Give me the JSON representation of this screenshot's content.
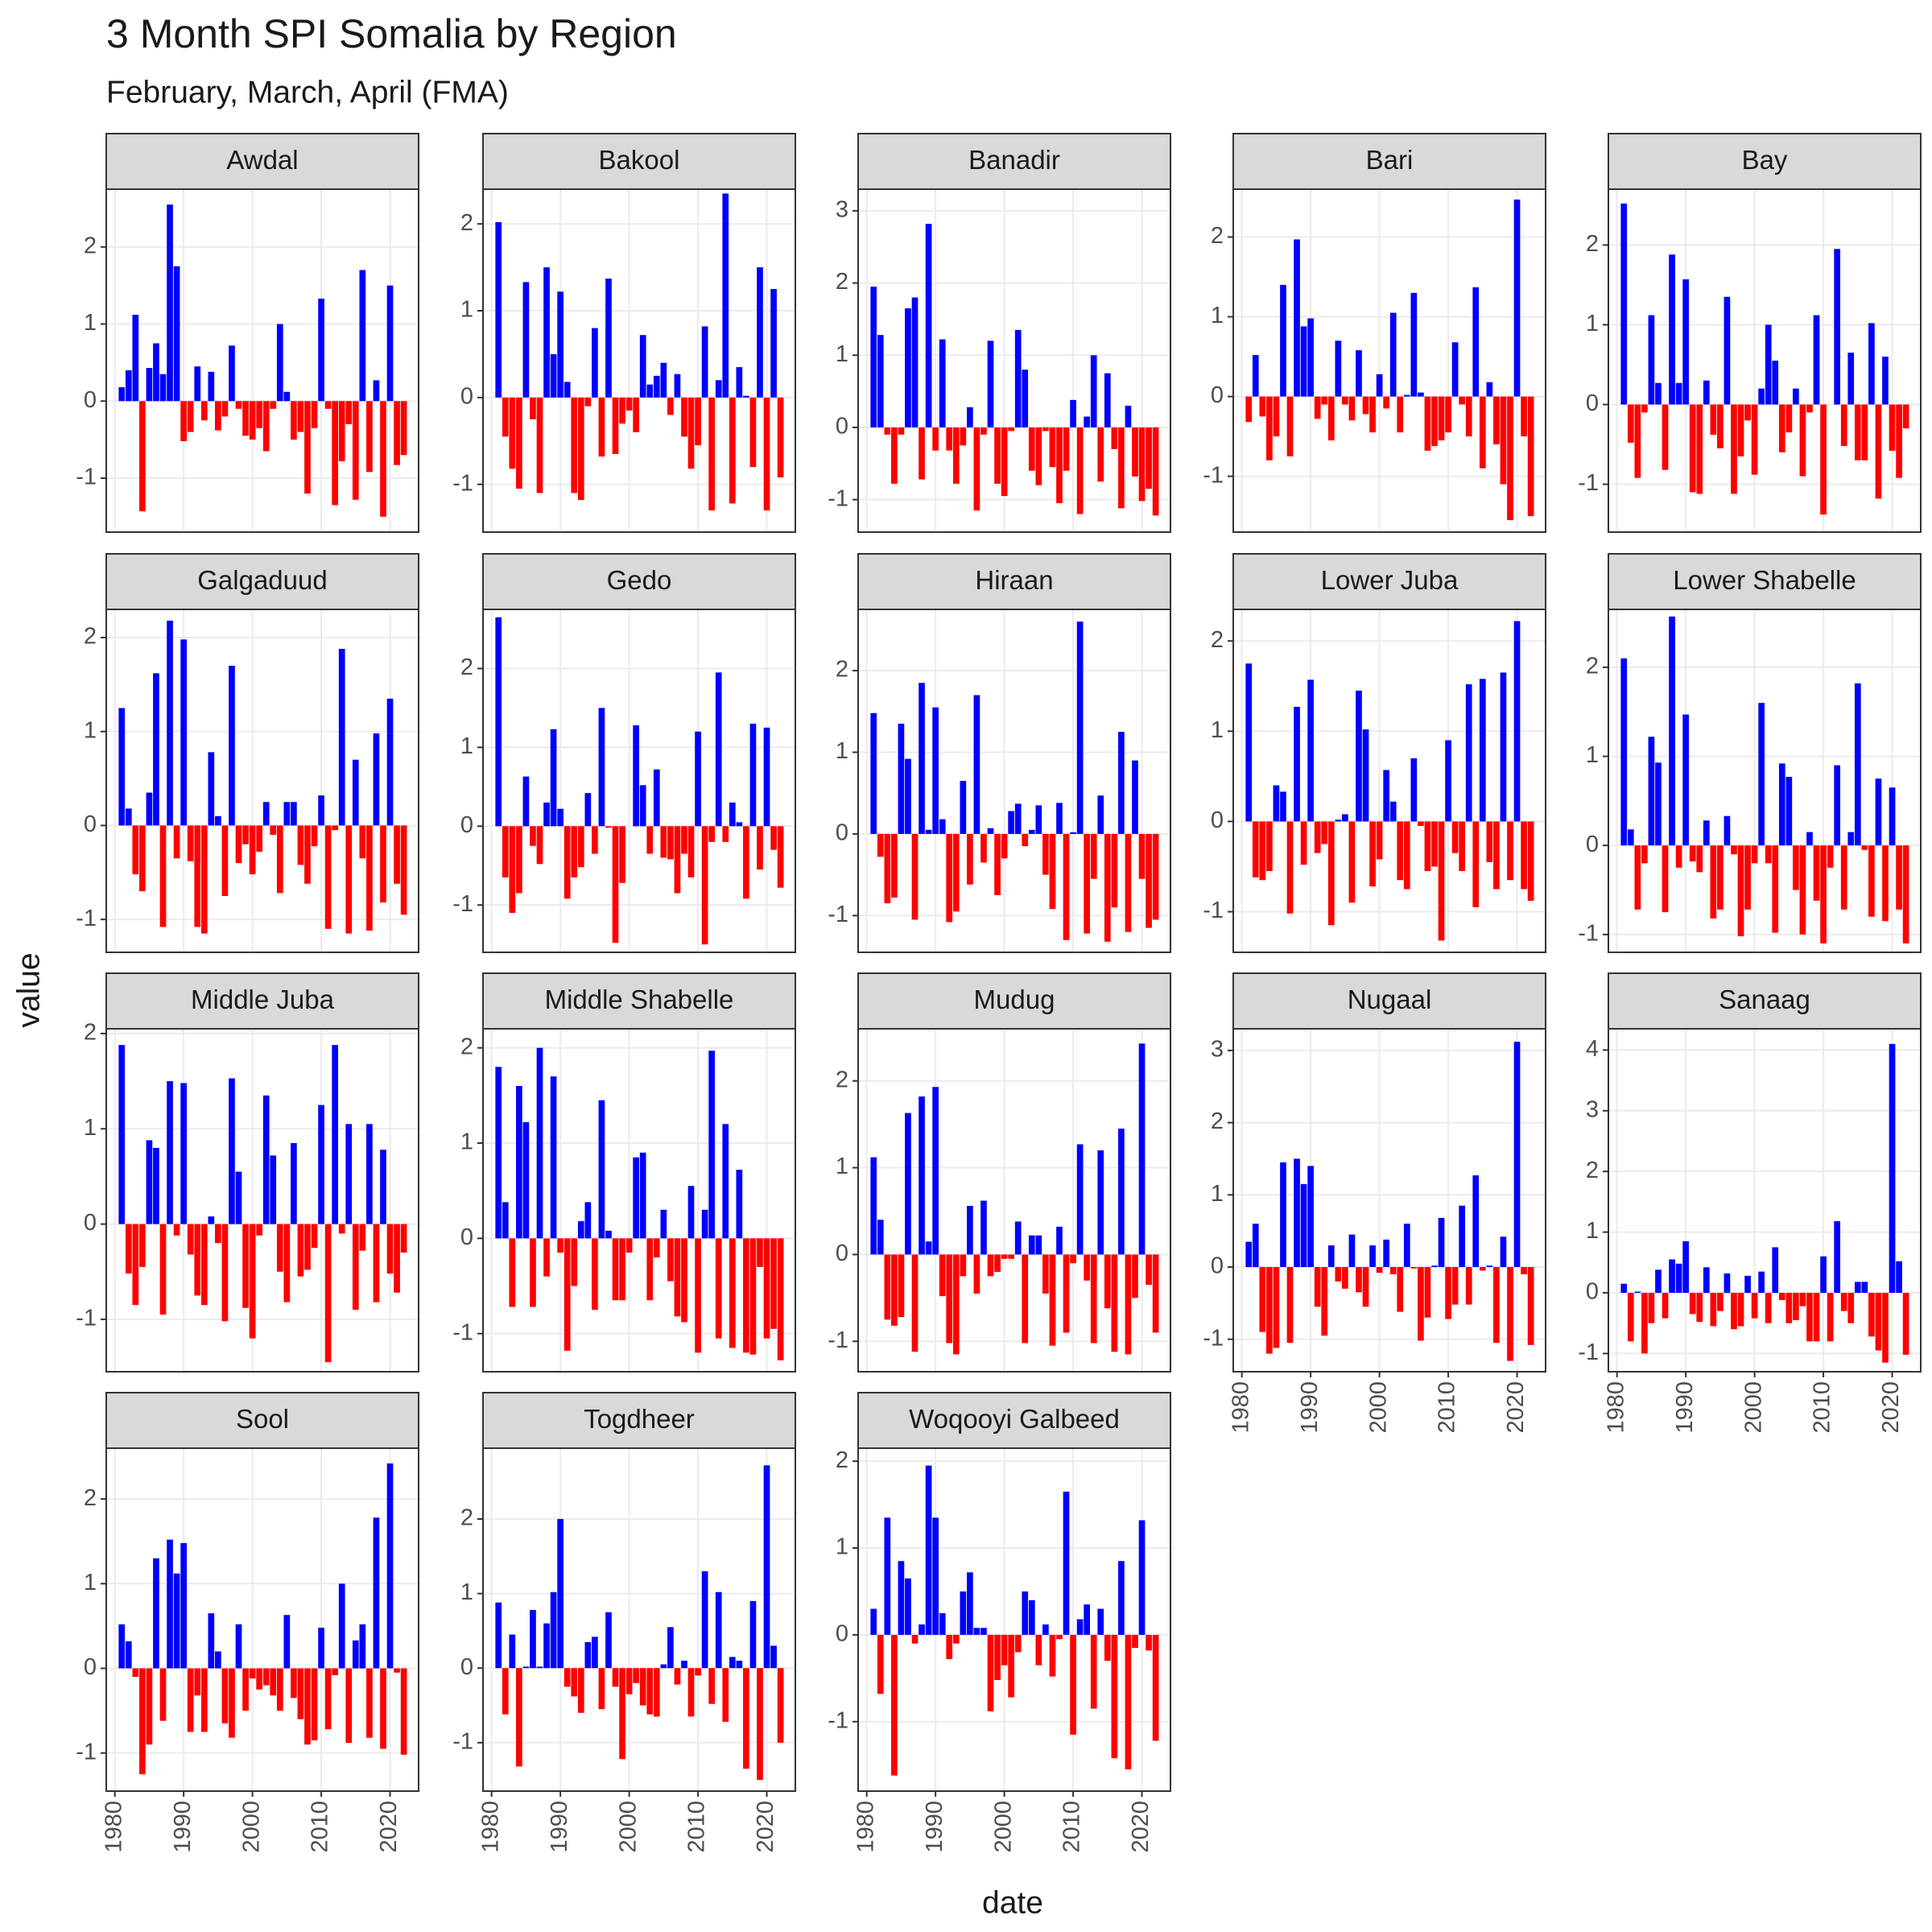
{
  "chart_data": {
    "type": "bar",
    "title": "3 Month SPI Somalia by Region",
    "subtitle": "February, March, April (FMA)",
    "x_label": "date",
    "y_label": "value",
    "x": [
      1981,
      1982,
      1983,
      1984,
      1985,
      1986,
      1987,
      1988,
      1989,
      1990,
      1991,
      1992,
      1993,
      1994,
      1995,
      1996,
      1997,
      1998,
      1999,
      2000,
      2001,
      2002,
      2003,
      2004,
      2005,
      2006,
      2007,
      2008,
      2009,
      2010,
      2011,
      2012,
      2013,
      2014,
      2015,
      2016,
      2017,
      2018,
      2019,
      2020,
      2021,
      2022
    ],
    "xlim": [
      1978.75,
      2024.15
    ],
    "xticks": [
      1980,
      1990,
      2000,
      2010,
      2020
    ],
    "colors": {
      "positive": "#0000ff",
      "negative": "#ff0000"
    },
    "grid": true,
    "panels": [
      {
        "name": "Awdal",
        "ylim": [
          -1.7,
          2.75
        ],
        "yticks": [
          -1,
          0,
          1,
          2
        ],
        "values": [
          0.18,
          0.4,
          1.12,
          -1.43,
          0.43,
          0.75,
          0.35,
          2.55,
          1.75,
          -0.52,
          -0.4,
          0.45,
          -0.25,
          0.38,
          -0.38,
          -0.2,
          0.72,
          -0.1,
          -0.45,
          -0.5,
          -0.35,
          -0.65,
          -0.1,
          1.0,
          0.12,
          -0.5,
          -0.4,
          -1.2,
          -0.35,
          1.33,
          -0.1,
          -1.35,
          -0.78,
          -0.3,
          -1.28,
          1.7,
          -0.92,
          0.27,
          -1.5,
          1.5,
          -0.83,
          -0.7
        ]
      },
      {
        "name": "Bakool",
        "ylim": [
          -1.55,
          2.4
        ],
        "yticks": [
          -1,
          0,
          1,
          2
        ],
        "values": [
          2.02,
          -0.45,
          -0.82,
          -1.05,
          1.33,
          -0.25,
          -1.1,
          1.5,
          0.5,
          1.22,
          0.18,
          -1.1,
          -1.18,
          -0.1,
          0.8,
          -0.68,
          1.37,
          -0.65,
          -0.3,
          -0.15,
          -0.4,
          0.72,
          0.15,
          0.25,
          0.4,
          -0.2,
          0.27,
          -0.45,
          -0.82,
          -0.55,
          0.82,
          -1.3,
          0.2,
          2.35,
          -1.22,
          0.35,
          0.02,
          -0.8,
          1.5,
          -1.3,
          1.25,
          -0.92
        ]
      },
      {
        "name": "Banadir",
        "ylim": [
          -1.45,
          3.3
        ],
        "yticks": [
          -1,
          0,
          1,
          2,
          3
        ],
        "values": [
          1.95,
          1.28,
          -0.1,
          -0.78,
          -0.1,
          1.65,
          1.8,
          -0.72,
          2.82,
          -0.32,
          1.22,
          -0.32,
          -0.78,
          -0.25,
          0.28,
          -1.15,
          -0.1,
          1.2,
          -0.78,
          -0.95,
          -0.05,
          1.35,
          0.8,
          -0.6,
          -0.8,
          -0.05,
          -0.55,
          -1.05,
          -0.6,
          0.38,
          -1.2,
          0.15,
          1.0,
          -0.75,
          0.75,
          -0.3,
          -1.12,
          0.3,
          -0.68,
          -1.02,
          -0.85,
          -1.22
        ]
      },
      {
        "name": "Bari",
        "ylim": [
          -1.7,
          2.6
        ],
        "yticks": [
          -1,
          0,
          1,
          2
        ],
        "values": [
          -0.32,
          0.52,
          -0.25,
          -0.8,
          -0.5,
          1.4,
          -0.75,
          1.97,
          0.88,
          0.98,
          -0.28,
          -0.1,
          -0.55,
          0.7,
          -0.1,
          -0.3,
          0.58,
          -0.22,
          -0.45,
          0.28,
          -0.15,
          1.05,
          -0.45,
          0.02,
          1.3,
          0.05,
          -0.68,
          -0.62,
          -0.55,
          -0.45,
          0.68,
          -0.1,
          -0.5,
          1.37,
          -0.9,
          0.18,
          -0.6,
          -1.1,
          -1.55,
          2.47,
          -0.5,
          -1.5
        ]
      },
      {
        "name": "Bay",
        "ylim": [
          -1.6,
          2.7
        ],
        "yticks": [
          -1,
          0,
          1,
          2
        ],
        "values": [
          2.52,
          -0.48,
          -0.92,
          -0.1,
          1.12,
          0.27,
          -0.82,
          1.88,
          0.27,
          1.57,
          -1.1,
          -1.12,
          0.3,
          -0.38,
          -0.55,
          1.35,
          -1.12,
          -0.65,
          -0.2,
          -0.88,
          0.2,
          1.0,
          0.55,
          -0.6,
          -0.35,
          0.2,
          -0.9,
          -0.1,
          1.12,
          -1.38,
          0.0,
          1.95,
          -0.52,
          0.65,
          -0.7,
          -0.7,
          1.02,
          -1.18,
          0.6,
          -0.58,
          -0.92,
          -0.3
        ]
      },
      {
        "name": "Galgaduud",
        "ylim": [
          -1.35,
          2.3
        ],
        "yticks": [
          -1,
          0,
          1,
          2
        ],
        "values": [
          1.25,
          0.18,
          -0.52,
          -0.7,
          0.35,
          1.62,
          -1.08,
          2.18,
          -0.35,
          1.98,
          -0.38,
          -1.08,
          -1.15,
          0.78,
          0.1,
          -0.75,
          1.7,
          -0.4,
          -0.2,
          -0.52,
          -0.28,
          0.25,
          -0.1,
          -0.72,
          0.25,
          0.25,
          -0.42,
          -0.62,
          -0.22,
          0.32,
          -1.1,
          -0.05,
          1.88,
          -1.15,
          0.7,
          -0.35,
          -1.12,
          0.98,
          -0.82,
          1.35,
          -0.62,
          -0.95
        ]
      },
      {
        "name": "Gedo",
        "ylim": [
          -1.6,
          2.75
        ],
        "yticks": [
          -1,
          0,
          1,
          2
        ],
        "values": [
          2.65,
          -0.65,
          -1.1,
          -0.85,
          0.63,
          -0.25,
          -0.48,
          0.3,
          1.23,
          0.22,
          -0.92,
          -0.65,
          -0.52,
          0.42,
          -0.35,
          1.5,
          -0.02,
          -1.48,
          -0.72,
          0.0,
          1.28,
          0.52,
          -0.35,
          0.72,
          -0.4,
          -0.42,
          -0.85,
          -0.35,
          -0.65,
          1.2,
          -1.5,
          -0.2,
          1.95,
          -0.2,
          0.3,
          0.05,
          -0.92,
          1.3,
          -0.55,
          1.25,
          -0.3,
          -0.78
        ]
      },
      {
        "name": "Hiraan",
        "ylim": [
          -1.45,
          2.75
        ],
        "yticks": [
          -1,
          0,
          1,
          2
        ],
        "values": [
          1.48,
          -0.28,
          -0.85,
          -0.78,
          1.35,
          0.92,
          -1.05,
          1.85,
          0.05,
          1.55,
          0.18,
          -1.08,
          -0.95,
          0.65,
          -0.62,
          1.7,
          -0.35,
          0.07,
          -0.75,
          -0.3,
          0.28,
          0.37,
          -0.15,
          0.05,
          0.35,
          -0.5,
          -0.92,
          0.38,
          -1.3,
          0.02,
          2.6,
          -1.22,
          -0.55,
          0.47,
          -1.32,
          -0.9,
          1.25,
          -1.2,
          0.9,
          -0.55,
          -1.15,
          -1.05
        ]
      },
      {
        "name": "Lower Juba",
        "ylim": [
          -1.45,
          2.35
        ],
        "yticks": [
          -1,
          0,
          1,
          2
        ],
        "values": [
          1.75,
          -0.62,
          -0.65,
          -0.55,
          0.4,
          0.33,
          -1.02,
          1.27,
          -0.48,
          1.57,
          -0.35,
          -0.25,
          -1.15,
          0.02,
          0.08,
          -0.9,
          1.45,
          1.02,
          -0.72,
          -0.42,
          0.57,
          0.22,
          -0.65,
          -0.75,
          0.7,
          -0.05,
          -0.55,
          -0.5,
          -1.32,
          0.9,
          -0.35,
          -0.55,
          1.52,
          -0.95,
          1.58,
          -0.45,
          -0.75,
          1.65,
          -0.65,
          2.22,
          -0.75,
          -0.88
        ]
      },
      {
        "name": "Lower Shabelle",
        "ylim": [
          -1.2,
          2.65
        ],
        "yticks": [
          -1,
          0,
          1,
          2
        ],
        "values": [
          2.1,
          0.18,
          -0.72,
          -0.2,
          1.22,
          0.93,
          -0.75,
          2.57,
          -0.25,
          1.47,
          -0.18,
          -0.3,
          0.28,
          -0.82,
          -0.72,
          0.33,
          -0.1,
          -1.02,
          -0.72,
          -0.2,
          1.6,
          -0.2,
          -0.98,
          0.92,
          0.77,
          -0.5,
          -1.0,
          0.15,
          -0.62,
          -1.1,
          -0.25,
          0.9,
          -0.72,
          0.15,
          1.82,
          -0.05,
          -0.8,
          0.75,
          -0.85,
          0.65,
          -0.72,
          -1.1
        ]
      },
      {
        "name": "Middle Juba",
        "ylim": [
          -1.55,
          2.05
        ],
        "yticks": [
          -1,
          0,
          1,
          2
        ],
        "values": [
          1.88,
          -0.52,
          -0.85,
          -0.45,
          0.88,
          0.8,
          -0.95,
          1.5,
          -0.12,
          1.48,
          -0.32,
          -0.75,
          -0.85,
          0.08,
          -0.2,
          -1.02,
          1.53,
          0.55,
          -0.88,
          -1.2,
          -0.12,
          1.35,
          0.72,
          -0.5,
          -0.82,
          0.85,
          -0.55,
          -0.48,
          -0.25,
          1.25,
          -1.45,
          1.88,
          -0.1,
          1.05,
          -0.9,
          -0.28,
          1.05,
          -0.82,
          0.78,
          -0.52,
          -0.72,
          -0.3
        ]
      },
      {
        "name": "Middle Shabelle",
        "ylim": [
          -1.4,
          2.2
        ],
        "yticks": [
          -1,
          0,
          1,
          2
        ],
        "values": [
          1.8,
          0.38,
          -0.72,
          1.6,
          1.22,
          -0.72,
          2.0,
          -0.4,
          1.7,
          -0.15,
          -1.18,
          -0.5,
          0.18,
          0.38,
          -0.75,
          1.45,
          0.08,
          -0.65,
          -0.65,
          -0.15,
          0.85,
          0.9,
          -0.65,
          -0.2,
          0.3,
          -0.45,
          -0.82,
          -0.88,
          0.55,
          -1.2,
          0.3,
          1.97,
          -1.05,
          1.2,
          -1.15,
          0.72,
          -1.2,
          -1.22,
          -0.3,
          -1.05,
          -0.95,
          -1.28
        ]
      },
      {
        "name": "Mudug",
        "ylim": [
          -1.35,
          2.6
        ],
        "yticks": [
          -1,
          0,
          1,
          2
        ],
        "values": [
          1.12,
          0.4,
          -0.75,
          -0.82,
          -0.72,
          1.63,
          -1.12,
          1.82,
          0.15,
          1.93,
          -0.48,
          -1.02,
          -1.15,
          -0.25,
          0.56,
          -0.45,
          0.62,
          -0.25,
          -0.2,
          -0.05,
          -0.05,
          0.38,
          -1.02,
          0.22,
          0.22,
          -0.45,
          -1.05,
          0.32,
          -0.9,
          -0.1,
          1.27,
          -0.3,
          -1.02,
          1.2,
          -0.62,
          -1.12,
          1.45,
          -1.15,
          -0.5,
          2.43,
          -0.35,
          -0.9
        ]
      },
      {
        "name": "Nugaal",
        "ylim": [
          -1.45,
          3.3
        ],
        "yticks": [
          -1,
          0,
          1,
          2,
          3
        ],
        "values": [
          0.35,
          0.6,
          -0.9,
          -1.2,
          -1.12,
          1.45,
          -1.05,
          1.5,
          1.15,
          1.4,
          -0.55,
          -0.95,
          0.3,
          -0.2,
          -0.3,
          0.45,
          -0.35,
          -0.55,
          0.3,
          -0.08,
          0.38,
          -0.1,
          -0.62,
          0.6,
          -0.02,
          -1.02,
          -0.7,
          0.02,
          0.68,
          -0.72,
          -0.52,
          0.85,
          -0.52,
          1.27,
          -0.05,
          0.02,
          -1.05,
          0.42,
          -1.3,
          3.12,
          -0.1,
          -1.08
        ]
      },
      {
        "name": "Sanaag",
        "ylim": [
          -1.3,
          4.35
        ],
        "yticks": [
          -1,
          0,
          1,
          2,
          3,
          4
        ],
        "values": [
          0.15,
          -0.8,
          0.02,
          -1.0,
          -0.5,
          0.38,
          -0.42,
          0.55,
          0.48,
          0.85,
          -0.35,
          -0.48,
          0.42,
          -0.55,
          -0.3,
          0.32,
          -0.6,
          -0.55,
          0.28,
          -0.42,
          0.35,
          -0.5,
          0.75,
          -0.12,
          -0.5,
          -0.45,
          -0.22,
          -0.8,
          -0.8,
          0.6,
          -0.8,
          1.18,
          -0.3,
          -0.5,
          0.18,
          0.18,
          -0.72,
          -0.95,
          -1.15,
          4.1,
          0.52,
          -1.02
        ]
      },
      {
        "name": "Sool",
        "ylim": [
          -1.45,
          2.6
        ],
        "yticks": [
          -1,
          0,
          1,
          2
        ],
        "values": [
          0.52,
          0.32,
          -0.1,
          -1.25,
          -0.9,
          1.3,
          -0.62,
          1.52,
          1.12,
          1.48,
          -0.75,
          -0.32,
          -0.75,
          0.65,
          0.2,
          -0.65,
          -0.82,
          0.52,
          -0.5,
          -0.12,
          -0.25,
          -0.2,
          -0.32,
          -0.5,
          0.63,
          -0.35,
          -0.6,
          -0.9,
          -0.85,
          0.48,
          -0.72,
          -0.08,
          1.0,
          -0.88,
          0.33,
          0.52,
          -0.82,
          1.78,
          -0.95,
          2.42,
          -0.05,
          -1.02
        ]
      },
      {
        "name": "Togdheer",
        "ylim": [
          -1.65,
          2.95
        ],
        "yticks": [
          -1,
          0,
          1,
          2
        ],
        "values": [
          0.88,
          -0.62,
          0.45,
          -1.32,
          0.02,
          0.78,
          0.02,
          0.6,
          1.02,
          2.0,
          -0.25,
          -0.38,
          -0.6,
          0.35,
          0.42,
          -0.55,
          0.75,
          -0.25,
          -1.22,
          -0.35,
          -0.2,
          -0.5,
          -0.62,
          -0.65,
          0.05,
          0.55,
          -0.22,
          0.1,
          -0.65,
          -0.1,
          1.3,
          -0.48,
          1.02,
          -0.72,
          0.15,
          0.1,
          -1.35,
          0.9,
          -1.5,
          2.72,
          0.3,
          -1.0
        ]
      },
      {
        "name": "Woqooyi Galbeed",
        "ylim": [
          -1.8,
          2.15
        ],
        "yticks": [
          -1,
          0,
          1,
          2
        ],
        "values": [
          0.3,
          -0.68,
          1.35,
          -1.62,
          0.85,
          0.65,
          -0.1,
          0.12,
          1.95,
          1.35,
          0.25,
          -0.28,
          -0.1,
          0.5,
          0.72,
          0.08,
          0.08,
          -0.88,
          -0.52,
          -0.35,
          -0.72,
          -0.2,
          0.5,
          0.4,
          -0.35,
          0.12,
          -0.48,
          -0.05,
          1.65,
          -1.15,
          0.18,
          0.35,
          -0.85,
          0.3,
          -0.3,
          -1.42,
          0.85,
          -1.55,
          -0.15,
          1.32,
          -0.18,
          -1.22
        ]
      }
    ]
  }
}
